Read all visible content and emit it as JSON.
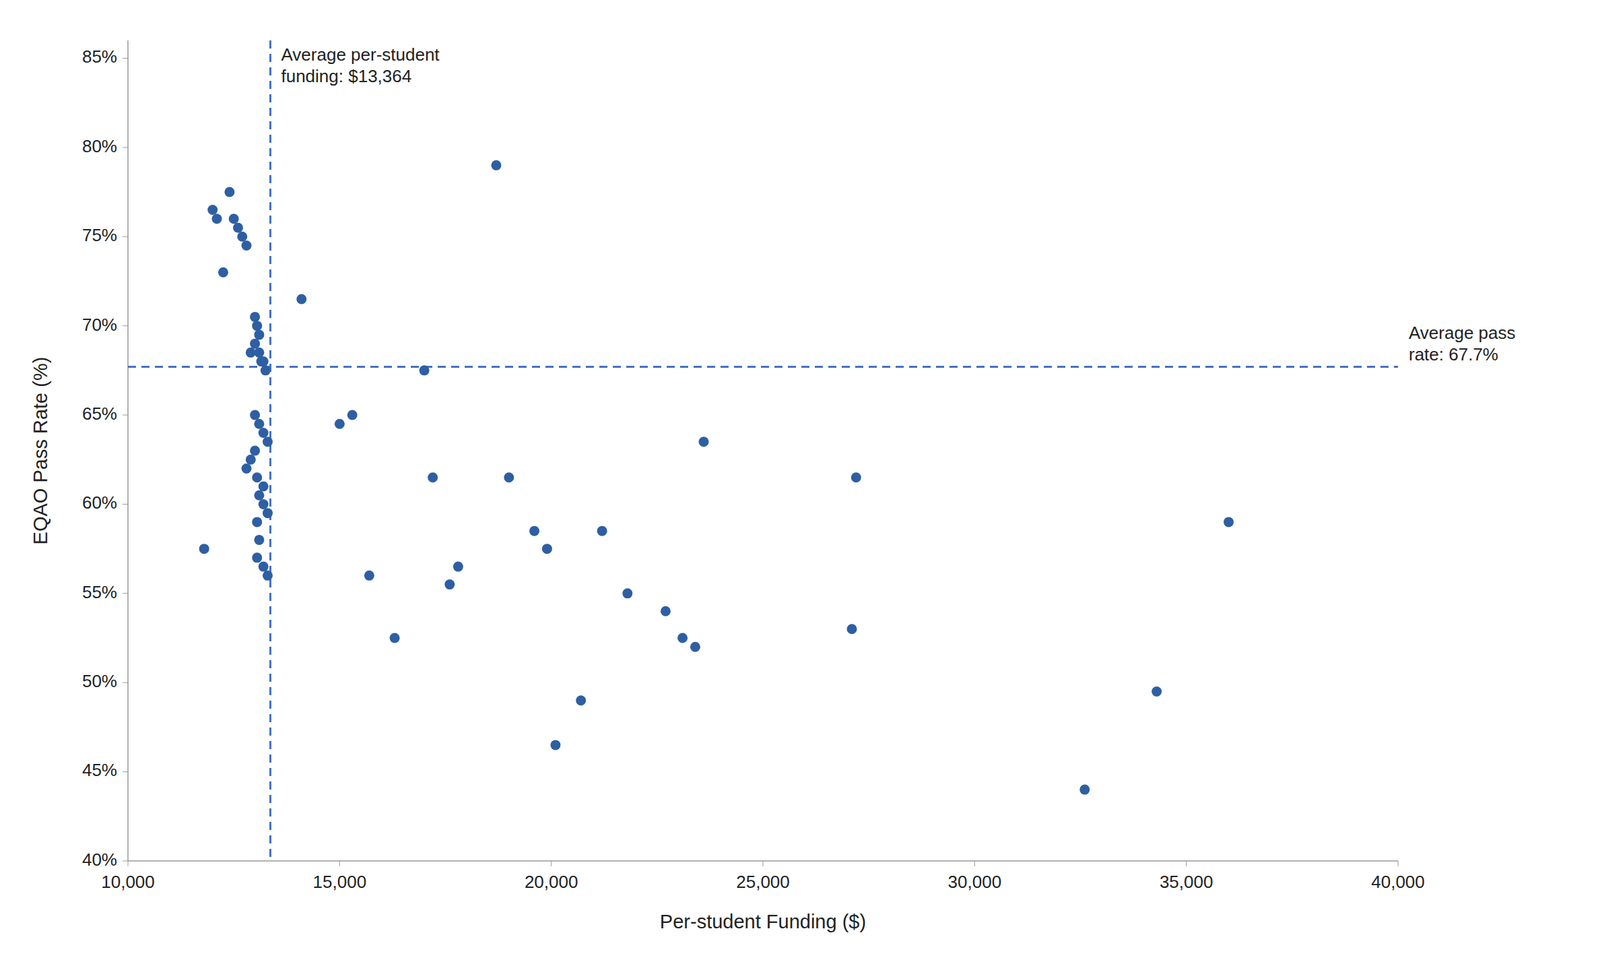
{
  "chart_data": {
    "type": "scatter",
    "xlabel": "Per-student Funding ($)",
    "ylabel": "EQAO Pass Rate (%)",
    "color": "#2E5FA3",
    "grid": false,
    "x": [
      11800,
      12000,
      12100,
      12250,
      12400,
      12500,
      12600,
      12700,
      12800,
      13000,
      13050,
      13100,
      13000,
      12900,
      13100,
      13150,
      13200,
      13250,
      13000,
      13100,
      13200,
      13300,
      13000,
      12900,
      12800,
      13050,
      13200,
      13100,
      13200,
      13300,
      13050,
      13100,
      13050,
      13200,
      13300,
      14100,
      15000,
      15300,
      15700,
      16300,
      17000,
      17200,
      17600,
      17800,
      18700,
      19000,
      19600,
      19900,
      20100,
      20700,
      21200,
      21800,
      22700,
      23100,
      23400,
      23600,
      27200,
      27100,
      32600,
      34300,
      36000
    ],
    "values": [
      57.5,
      76.5,
      76.0,
      73.0,
      77.5,
      76.0,
      75.5,
      75.0,
      74.5,
      70.5,
      70.0,
      69.5,
      69.0,
      68.5,
      68.5,
      68.0,
      68.0,
      67.5,
      65.0,
      64.5,
      64.0,
      63.5,
      63.0,
      62.5,
      62.0,
      61.5,
      61.0,
      60.5,
      60.0,
      59.5,
      59.0,
      58.0,
      57.0,
      56.5,
      56.0,
      71.5,
      64.5,
      65.0,
      56.0,
      52.5,
      67.5,
      61.5,
      55.5,
      56.5,
      79.0,
      61.5,
      58.5,
      57.5,
      46.5,
      49.0,
      58.5,
      55.0,
      54.0,
      52.5,
      52.0,
      63.5,
      61.5,
      53.0,
      44.0,
      49.5,
      59.0
    ],
    "xlim": [
      10000,
      40000
    ],
    "ylim": [
      40,
      86
    ],
    "xticks": [
      {
        "value": 10000,
        "label": "10,000"
      },
      {
        "value": 15000,
        "label": "15,000"
      },
      {
        "value": 20000,
        "label": "20,000"
      },
      {
        "value": 25000,
        "label": "25,000"
      },
      {
        "value": 30000,
        "label": "30,000"
      },
      {
        "value": 35000,
        "label": "35,000"
      },
      {
        "value": 40000,
        "label": "40,000"
      }
    ],
    "yticks": [
      {
        "value": 40,
        "label": "40%"
      },
      {
        "value": 45,
        "label": "45%"
      },
      {
        "value": 50,
        "label": "50%"
      },
      {
        "value": 55,
        "label": "55%"
      },
      {
        "value": 60,
        "label": "60%"
      },
      {
        "value": 65,
        "label": "65%"
      },
      {
        "value": 70,
        "label": "70%"
      },
      {
        "value": 75,
        "label": "75%"
      },
      {
        "value": 80,
        "label": "80%"
      },
      {
        "value": 85,
        "label": "85%"
      }
    ],
    "annotations": [
      {
        "text": "Average per-student\nfunding: $13,364",
        "x": 13364,
        "color": "#4472C4",
        "line_style": "dashed"
      },
      {
        "text": "Average pass\nrate: 67.7%",
        "y": 67.7,
        "color": "#4472C4",
        "line_style": "dashed"
      }
    ]
  }
}
